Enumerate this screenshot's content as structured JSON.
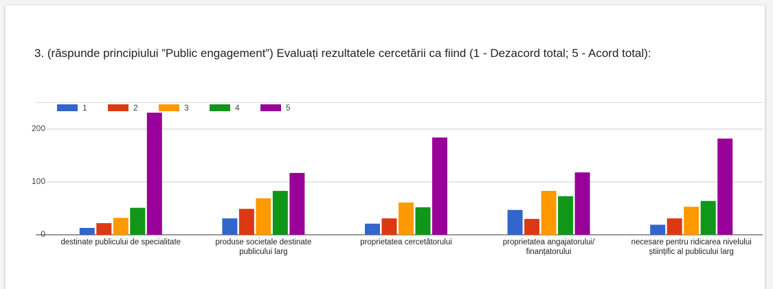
{
  "chart_data": {
    "type": "bar",
    "title": "3. (răspunde principiului ”Public engagement”)   Evaluați rezultatele cercetării ca fiind (1 - Dezacord total; 5  - Acord total):",
    "categories": [
      "destinate publicului de specialitate",
      "produse societale destinate publicului larg",
      "proprietatea cercetătorului",
      "proprietatea angajatorului/ finanțatorului",
      "necesare pentru ridicarea nivelului științific al publicului larg"
    ],
    "series": [
      {
        "name": "1",
        "color": "#3366cc",
        "values": [
          13,
          31,
          21,
          47,
          19
        ]
      },
      {
        "name": "2",
        "color": "#dc3912",
        "values": [
          22,
          49,
          31,
          30,
          31
        ]
      },
      {
        "name": "3",
        "color": "#ff9900",
        "values": [
          32,
          69,
          61,
          83,
          53
        ]
      },
      {
        "name": "4",
        "color": "#109618",
        "values": [
          51,
          83,
          52,
          73,
          64
        ]
      },
      {
        "name": "5",
        "color": "#990099",
        "values": [
          231,
          117,
          184,
          118,
          182
        ]
      }
    ],
    "ylim": [
      0,
      250
    ],
    "yticks": [
      0,
      100,
      200
    ],
    "grid": true,
    "legend": "top-left"
  }
}
